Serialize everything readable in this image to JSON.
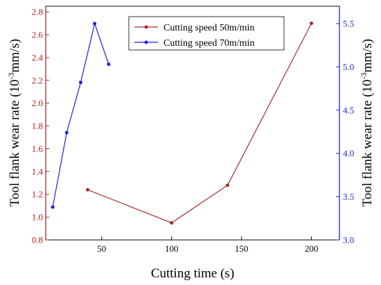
{
  "chart_data": {
    "type": "line",
    "xlabel": "Cutting time (s)",
    "ylabel_left": "Tool flank wear rate (10^-3 mm/s)",
    "ylabel_right": "Tool flank wear rate (10^-3 mm/s)",
    "xlim": [
      10,
      220
    ],
    "ylim_left": [
      0.8,
      2.85
    ],
    "ylim_right": [
      3.0,
      5.7
    ],
    "x_ticks": [
      50,
      100,
      150,
      200
    ],
    "y_left_ticks": [
      0.8,
      1.0,
      1.2,
      1.4,
      1.6,
      1.8,
      2.0,
      2.2,
      2.4,
      2.6,
      2.8
    ],
    "y_right_ticks": [
      3.0,
      3.5,
      4.0,
      4.5,
      5.0,
      5.5
    ],
    "grid": false,
    "legend_position": "top-right",
    "colors": {
      "left_axis": "#b22222",
      "right_axis": "#2222cc",
      "series1": "#a52a2a",
      "series2": "#1f1fe0"
    },
    "series": [
      {
        "name": "Cutting speed 50m/min",
        "axis": "left",
        "x": [
          40,
          100,
          140,
          200
        ],
        "y": [
          1.24,
          0.95,
          1.28,
          2.7
        ]
      },
      {
        "name": "Cutting speed 70m/min",
        "axis": "right",
        "x": [
          15,
          25,
          35,
          45,
          55
        ],
        "y": [
          3.38,
          4.24,
          4.82,
          5.5,
          5.03
        ]
      }
    ]
  },
  "labels": {
    "xlabel": "Cutting time (s)",
    "ylabel_prefix": "Tool flank wear rate (10",
    "ylabel_exp": "-3",
    "ylabel_suffix": "mm/s)"
  }
}
